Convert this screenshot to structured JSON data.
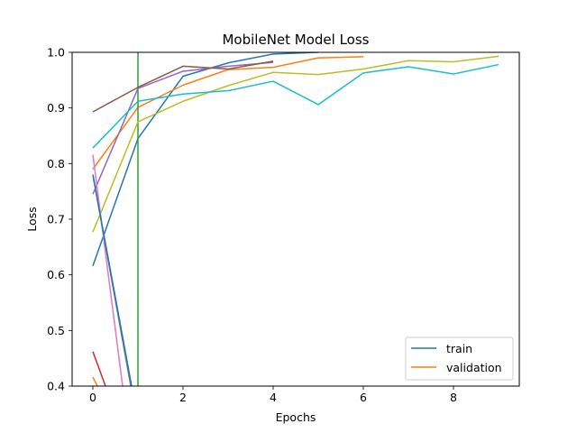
{
  "chart_data": {
    "type": "line",
    "title": "MobileNet Model Loss",
    "xlabel": "Epochs",
    "ylabel": "Loss",
    "xlim": [
      -0.46,
      9.46
    ],
    "ylim": [
      0.4,
      1.0
    ],
    "xticks": [
      0,
      2,
      4,
      6,
      8
    ],
    "yticks": [
      0.4,
      0.5,
      0.6,
      0.7,
      0.8,
      0.9,
      1.0
    ],
    "xtick_labels": [
      "0",
      "2",
      "4",
      "6",
      "8"
    ],
    "ytick_labels": [
      "0.4",
      "0.5",
      "0.6",
      "0.7",
      "0.8",
      "0.9",
      "1.0"
    ],
    "grid": false,
    "legend_position": "lower-right",
    "legend": [
      {
        "label": "train",
        "color": "#1f77b4"
      },
      {
        "label": "validation",
        "color": "#ff7f0e"
      }
    ],
    "series": [
      {
        "color": "#1f77b4",
        "x": [
          0,
          1,
          2,
          3,
          4,
          5
        ],
        "y": [
          0.616,
          0.845,
          0.957,
          0.981,
          0.997,
          1.0
        ]
      },
      {
        "color": "#ff7f0e",
        "x": [
          0,
          1,
          2,
          3,
          4,
          5,
          6
        ],
        "y": [
          0.79,
          0.901,
          0.941,
          0.969,
          0.973,
          0.99,
          0.992
        ]
      },
      {
        "color": "#2ca02c",
        "x": [
          1,
          1
        ],
        "y": [
          0.4,
          1.0
        ]
      },
      {
        "color": "#d62728",
        "x": [
          0,
          0.28
        ],
        "y": [
          0.462,
          0.4
        ]
      },
      {
        "color": "#9467bd",
        "x": [
          0,
          1,
          2,
          3,
          4
        ],
        "y": [
          0.745,
          0.935,
          0.966,
          0.975,
          0.982
        ]
      },
      {
        "color": "#8c564b",
        "x": [
          0,
          1,
          2,
          3,
          4
        ],
        "y": [
          0.893,
          0.937,
          0.975,
          0.97,
          0.984
        ]
      },
      {
        "color": "#e377c2",
        "x": [
          0,
          0.66
        ],
        "y": [
          0.816,
          0.4
        ]
      },
      {
        "color": "#7f7f7f",
        "x": [
          0,
          0.84
        ],
        "y": [
          0.78,
          0.4
        ]
      },
      {
        "color": "#bcbd22",
        "x": [
          0,
          1,
          2,
          3,
          4,
          5,
          6,
          7,
          8,
          9
        ],
        "y": [
          0.677,
          0.875,
          0.912,
          0.94,
          0.964,
          0.96,
          0.97,
          0.985,
          0.983,
          0.993
        ]
      },
      {
        "color": "#17becf",
        "x": [
          0,
          1,
          2,
          3,
          4,
          5,
          6,
          7,
          8,
          9
        ],
        "y": [
          0.828,
          0.912,
          0.925,
          0.931,
          0.948,
          0.906,
          0.963,
          0.974,
          0.961,
          0.978
        ]
      },
      {
        "color": "#1f77b4",
        "x": [
          0,
          0.86
        ],
        "y": [
          0.78,
          0.4
        ]
      },
      {
        "color": "#ff7f0e",
        "x": [
          0,
          0.1
        ],
        "y": [
          0.416,
          0.4
        ]
      }
    ]
  }
}
